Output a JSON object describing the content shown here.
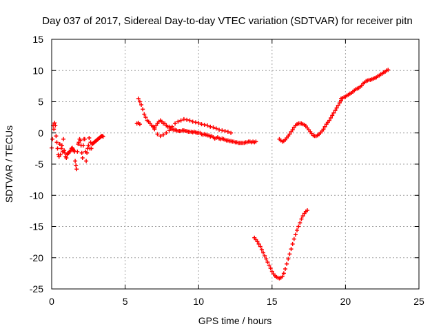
{
  "chart_data": {
    "type": "scatter",
    "title": "Day 037 of 2017, Sidereal Day-to-day VTEC variation (SDTVAR) for receiver pitn",
    "xlabel": "GPS time / hours",
    "ylabel": "SDTVAR / TECUs",
    "xlim": [
      0,
      25
    ],
    "ylim": [
      -25,
      15
    ],
    "xticks": [
      0,
      5,
      10,
      15,
      20,
      25
    ],
    "yticks": [
      -25,
      -20,
      -15,
      -10,
      -5,
      0,
      5,
      10,
      15
    ],
    "grid": true,
    "marker": "+",
    "color": "#ff0000",
    "series": [
      {
        "x": [
          0.0,
          0.05,
          0.1,
          0.15,
          0.2,
          0.25,
          0.3,
          0.35,
          0.4,
          0.45,
          0.5,
          0.55,
          0.6,
          0.65,
          0.7,
          0.75,
          0.8,
          0.85,
          0.9,
          0.95,
          1.0,
          1.05,
          1.1,
          1.15,
          1.2,
          1.25,
          1.3,
          1.35,
          1.4,
          1.45,
          1.5,
          1.55,
          1.6,
          1.65,
          1.7,
          1.75,
          1.8,
          1.85,
          1.9,
          1.95,
          2.0,
          2.05,
          2.1,
          2.15,
          2.2,
          2.25,
          2.3,
          2.35,
          2.4,
          2.45,
          2.5,
          2.55,
          2.6,
          2.65,
          2.7,
          2.75,
          2.8,
          2.85,
          2.9,
          2.95,
          3.0,
          3.05,
          3.1,
          3.15,
          3.2,
          3.25,
          3.3,
          3.35,
          3.4,
          3.45,
          3.5
        ],
        "y": [
          -2.4,
          -1.0,
          1.2,
          0.6,
          1.6,
          1.2,
          -0.5,
          -1.5,
          -2.5,
          -3.5,
          -3.8,
          -1.8,
          -3.5,
          -2.5,
          -2.0,
          -3.0,
          -1.0,
          -2.8,
          -3.2,
          -3.8,
          -4.0,
          -3.5,
          -3.3,
          -3.2,
          -3.0,
          -3.0,
          -2.8,
          -2.5,
          -2.4,
          -2.6,
          -2.8,
          -3.0,
          -4.5,
          -5.2,
          -5.8,
          -3.0,
          -1.8,
          -1.5,
          -1.0,
          -1.2,
          -2.0,
          -3.2,
          -4.0,
          -2.0,
          -1.0,
          -1.0,
          -3.0,
          -4.5,
          -3.2,
          -2.5,
          -2.0,
          -0.8,
          -2.5,
          -1.5,
          -2.5,
          -1.8,
          -1.7,
          -1.6,
          -1.5,
          -1.4,
          -1.3,
          -1.2,
          -1.1,
          -1.0,
          -0.9,
          -0.8,
          -0.7,
          -0.6,
          -0.5,
          -0.5,
          -0.6
        ]
      },
      {
        "x": [
          5.9,
          6.0,
          6.1,
          6.2,
          6.3,
          6.4,
          6.5,
          6.6,
          6.7,
          6.8,
          6.9,
          7.0,
          7.1,
          7.2,
          7.3,
          7.4,
          7.5,
          7.6,
          7.7,
          7.8,
          7.9,
          8.0,
          8.1,
          8.2,
          8.3,
          8.4,
          8.5,
          8.6,
          8.7,
          8.8,
          8.9,
          9.0,
          9.1,
          9.2,
          9.3,
          9.4,
          9.5,
          9.6,
          9.7,
          9.8,
          9.9,
          10.0,
          10.1,
          10.2,
          10.3,
          10.4,
          10.5,
          10.6,
          10.7,
          10.8,
          10.9,
          11.0,
          11.1,
          11.2,
          11.3,
          11.4,
          11.5,
          11.6,
          11.7,
          11.8,
          11.9,
          12.0,
          12.1,
          12.2,
          12.3,
          12.4,
          12.5,
          12.6,
          12.7,
          12.8,
          12.9,
          13.0,
          13.1,
          13.2,
          13.3,
          13.4,
          13.5,
          13.6,
          13.7,
          13.8,
          13.9
        ],
        "y": [
          5.5,
          5.0,
          4.5,
          3.8,
          3.0,
          2.5,
          2.0,
          1.8,
          1.5,
          1.2,
          1.0,
          0.8,
          1.2,
          1.5,
          1.8,
          2.0,
          1.8,
          1.5,
          1.5,
          1.2,
          1.0,
          1.0,
          0.8,
          0.6,
          0.5,
          0.5,
          0.4,
          0.3,
          0.3,
          0.3,
          0.4,
          0.4,
          0.3,
          0.3,
          0.2,
          0.2,
          0.2,
          0.1,
          0.2,
          0.1,
          0.0,
          0.0,
          0.0,
          -0.2,
          -0.3,
          -0.2,
          -0.3,
          -0.4,
          -0.4,
          -0.6,
          -0.5,
          -0.7,
          -0.9,
          -0.8,
          -0.7,
          -0.9,
          -1.0,
          -0.9,
          -1.0,
          -1.1,
          -1.2,
          -1.2,
          -1.3,
          -1.3,
          -1.4,
          -1.4,
          -1.5,
          -1.5,
          -1.6,
          -1.6,
          -1.6,
          -1.6,
          -1.6,
          -1.5,
          -1.5,
          -1.4,
          -1.4,
          -1.5,
          -1.4,
          -1.5,
          -1.4
        ]
      },
      {
        "x": [
          5.8,
          5.9,
          6.0,
          7.0,
          7.2,
          7.4,
          7.6,
          7.8,
          8.0,
          8.2,
          8.4,
          8.6,
          8.8,
          9.0,
          9.2,
          9.4,
          9.6,
          9.8,
          10.0,
          10.2,
          10.4,
          10.6,
          10.8,
          11.0,
          11.2,
          11.4,
          11.6,
          11.8,
          12.0,
          12.2
        ],
        "y": [
          1.5,
          1.6,
          1.4,
          0.6,
          -0.2,
          -0.5,
          -0.3,
          0.0,
          0.4,
          1.0,
          1.5,
          1.8,
          2.0,
          2.2,
          2.1,
          2.0,
          1.8,
          1.7,
          1.6,
          1.4,
          1.3,
          1.2,
          1.0,
          0.9,
          0.7,
          0.5,
          0.4,
          0.3,
          0.2,
          0.0
        ]
      },
      {
        "x": [
          13.8,
          13.9,
          14.0,
          14.1,
          14.2,
          14.3,
          14.4,
          14.5,
          14.6,
          14.7,
          14.8,
          14.9,
          15.0,
          15.1,
          15.2,
          15.3,
          15.4,
          15.5,
          15.6,
          15.7,
          15.8,
          15.9,
          16.0,
          16.1,
          16.2,
          16.3,
          16.4,
          16.5,
          16.6,
          16.7,
          16.8,
          16.9,
          17.0,
          17.1,
          17.2,
          17.3,
          17.4
        ],
        "y": [
          -16.8,
          -17.1,
          -17.4,
          -17.8,
          -18.2,
          -18.7,
          -19.2,
          -19.7,
          -20.2,
          -20.7,
          -21.2,
          -21.7,
          -22.2,
          -22.6,
          -22.9,
          -23.1,
          -23.2,
          -23.3,
          -23.2,
          -23.0,
          -22.5,
          -21.8,
          -21.0,
          -20.2,
          -19.4,
          -18.6,
          -17.8,
          -17.0,
          -16.3,
          -15.6,
          -15.0,
          -14.4,
          -13.8,
          -13.3,
          -12.9,
          -12.6,
          -12.4
        ]
      },
      {
        "x": [
          15.5,
          15.6,
          15.7,
          15.8,
          15.9,
          16.0,
          16.1,
          16.2,
          16.3,
          16.4,
          16.5,
          16.6,
          16.7,
          16.8,
          16.9,
          17.0,
          17.1,
          17.2,
          17.3,
          17.4,
          17.5,
          17.6,
          17.7,
          17.8,
          17.9,
          18.0,
          18.1,
          18.2,
          18.3,
          18.4,
          18.5,
          18.6,
          18.7,
          18.8,
          18.9,
          19.0,
          19.1,
          19.2,
          19.3,
          19.4,
          19.5,
          19.6,
          19.7
        ],
        "y": [
          -1.0,
          -1.2,
          -1.4,
          -1.3,
          -1.1,
          -0.8,
          -0.5,
          -0.2,
          0.2,
          0.5,
          0.9,
          1.2,
          1.4,
          1.5,
          1.5,
          1.5,
          1.4,
          1.3,
          1.1,
          0.8,
          0.5,
          0.2,
          -0.1,
          -0.4,
          -0.5,
          -0.5,
          -0.4,
          -0.2,
          0.0,
          0.3,
          0.6,
          1.0,
          1.4,
          1.7,
          2.0,
          2.4,
          2.8,
          3.2,
          3.6,
          4.0,
          4.4,
          4.8,
          5.2
        ]
      },
      {
        "x": [
          19.7,
          19.8,
          19.9,
          20.0,
          20.1,
          20.2,
          20.3,
          20.4,
          20.5,
          20.6,
          20.7,
          20.8,
          20.9,
          21.0,
          21.1,
          21.2,
          21.3,
          21.4,
          21.5,
          21.6,
          21.7,
          21.8,
          21.9,
          22.0,
          22.1,
          22.2,
          22.3,
          22.4,
          22.5,
          22.6,
          22.7,
          22.8,
          22.9
        ],
        "y": [
          5.5,
          5.6,
          5.7,
          5.8,
          6.0,
          6.1,
          6.3,
          6.4,
          6.6,
          6.8,
          7.0,
          7.1,
          7.2,
          7.4,
          7.6,
          7.9,
          8.1,
          8.3,
          8.4,
          8.5,
          8.5,
          8.6,
          8.7,
          8.8,
          8.9,
          9.1,
          9.2,
          9.4,
          9.5,
          9.7,
          9.8,
          10.0,
          10.1
        ]
      }
    ]
  }
}
